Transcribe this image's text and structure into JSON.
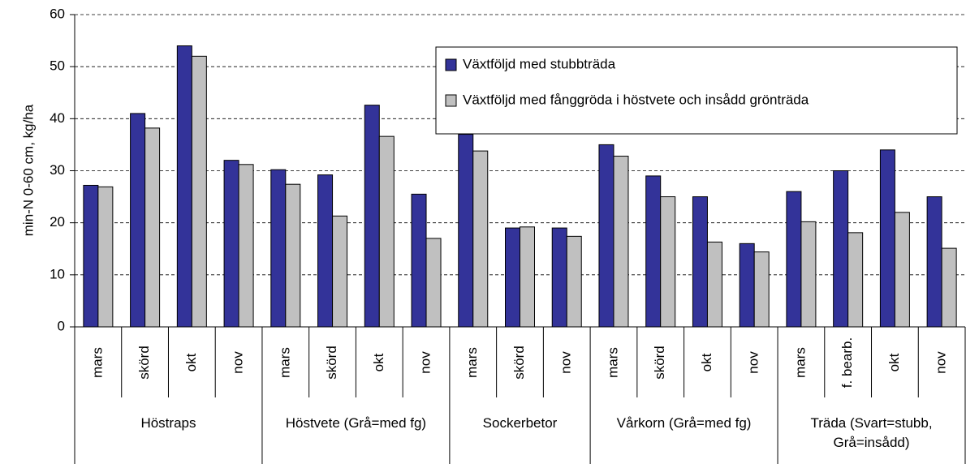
{
  "chart_data": {
    "type": "bar",
    "y_label": "min-N 0-60 cm, kg/ha",
    "groups": [
      {
        "name": "Höstraps",
        "categories": [
          "mars",
          "skörd",
          "okt",
          "nov"
        ]
      },
      {
        "name": "Höstvete (Grå=med fg)",
        "categories": [
          "mars",
          "skörd",
          "okt",
          "nov"
        ]
      },
      {
        "name": "Sockerbetor",
        "categories": [
          "mars",
          "skörd",
          "nov"
        ]
      },
      {
        "name": "Vårkorn (Grå=med fg)",
        "categories": [
          "mars",
          "skörd",
          "okt",
          "nov"
        ]
      },
      {
        "name": "Träda (Svart=stubb, Grå=insådd)",
        "categories": [
          "mars",
          "f. bearb.",
          "okt",
          "nov"
        ]
      }
    ],
    "series": [
      {
        "name": "Växtföljd med stubbträda",
        "color": "#333399",
        "values": [
          27.2,
          41,
          54,
          32,
          30.2,
          29.2,
          42.6,
          25.5,
          37,
          19,
          19,
          35,
          29,
          25,
          16,
          26,
          30,
          34,
          25
        ]
      },
      {
        "name": "Växtföljd med fånggröda i höstvete och insådd grönträda",
        "color": "#c0c0c0",
        "values": [
          26.9,
          38.2,
          52,
          31.2,
          27.4,
          21.3,
          36.6,
          17,
          33.8,
          19.2,
          17.4,
          32.8,
          25,
          16.3,
          14.4,
          20.2,
          18.1,
          22,
          15.1
        ]
      }
    ],
    "ylim": [
      0,
      60
    ],
    "yticks": [
      0,
      10,
      20,
      30,
      40,
      50,
      60
    ],
    "grid": true,
    "legend": "top-right"
  }
}
